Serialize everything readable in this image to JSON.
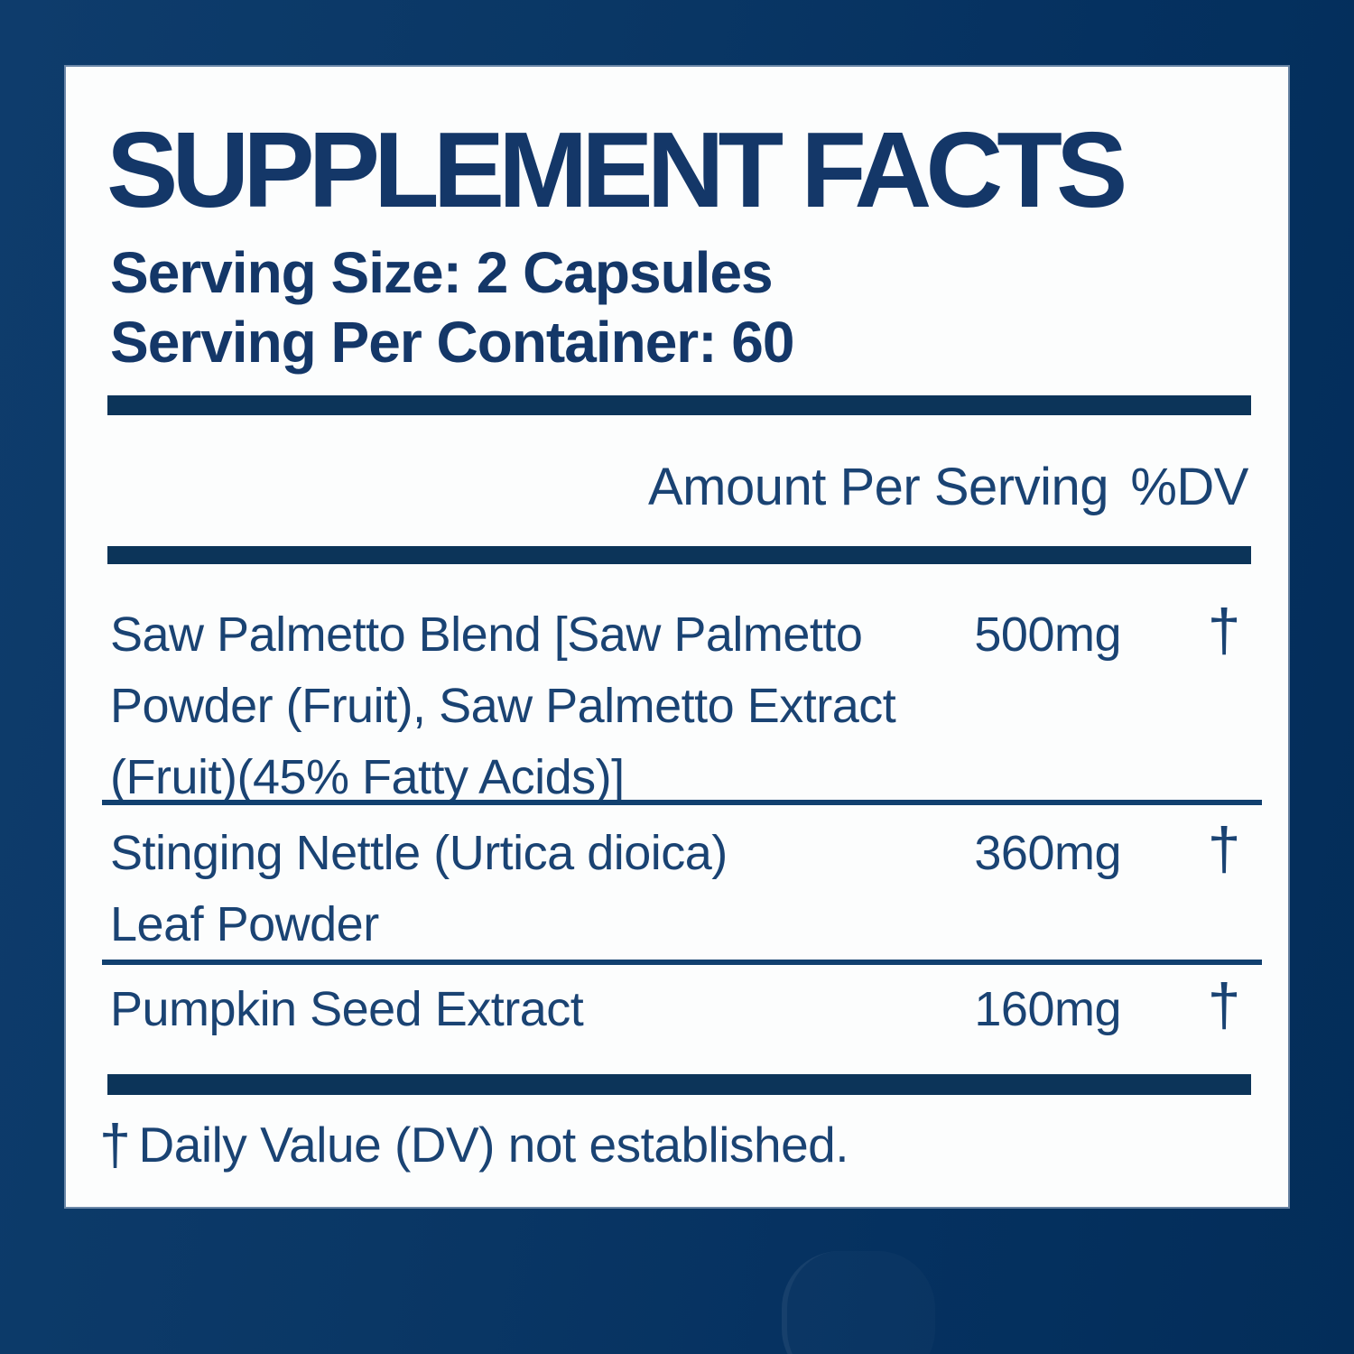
{
  "colors": {
    "background_left": "#0e3c6c",
    "background_right": "#032d59",
    "panel": "#fcfdfd",
    "heading_text": "#143768",
    "body_text": "#1a4373",
    "bar": "#0c3459",
    "divider": "#11406f"
  },
  "label": {
    "title": "SUPPLEMENT FACTS",
    "serving_size": "Serving Size: 2 Capsules",
    "servings_per_container": "Serving Per Container: 60",
    "table_header": {
      "amount": "Amount Per Serving",
      "dv": "%DV"
    },
    "rows": [
      {
        "name_lines": [
          "Saw Palmetto Blend [Saw Palmetto",
          "Powder (Fruit), Saw Palmetto Extract",
          "(Fruit)(45% Fatty Acids)]"
        ],
        "amount": "500mg",
        "dv": "†"
      },
      {
        "name_lines": [
          "Stinging Nettle (Urtica dioica)",
          "Leaf Powder"
        ],
        "amount": "360mg",
        "dv": "†"
      },
      {
        "name_lines": [
          "Pumpkin Seed Extract"
        ],
        "amount": "160mg",
        "dv": "†"
      }
    ],
    "footnote_symbol": "†",
    "footnote_text": "Daily Value (DV) not established."
  }
}
